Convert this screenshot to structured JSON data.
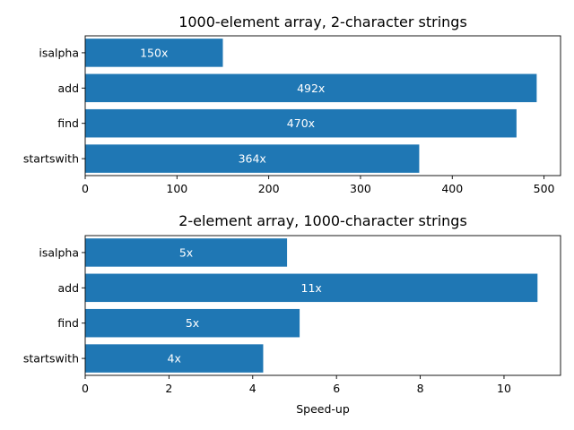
{
  "chart_data": [
    {
      "type": "bar",
      "orientation": "horizontal",
      "title": "1000-element array, 2-character strings",
      "categories": [
        "isalpha",
        "add",
        "find",
        "startswith"
      ],
      "values": [
        150,
        492,
        470,
        364
      ],
      "data_labels": [
        "150x",
        "492x",
        "470x",
        "364x"
      ],
      "xlabel": "",
      "ylabel": "",
      "xlim": [
        0,
        518
      ],
      "xticks": [
        0,
        100,
        200,
        300,
        400,
        500
      ],
      "grid": false,
      "bar_color": "#1f77b4"
    },
    {
      "type": "bar",
      "orientation": "horizontal",
      "title": "2-element array, 1000-character strings",
      "categories": [
        "isalpha",
        "add",
        "find",
        "startswith"
      ],
      "values": [
        4.82,
        10.8,
        5.12,
        4.25
      ],
      "data_labels": [
        "5x",
        "11x",
        "5x",
        "4x"
      ],
      "xlabel": "Speed-up",
      "ylabel": "",
      "xlim": [
        0,
        11.35
      ],
      "xticks": [
        0,
        2,
        4,
        6,
        8,
        10
      ],
      "grid": false,
      "bar_color": "#1f77b4"
    }
  ]
}
